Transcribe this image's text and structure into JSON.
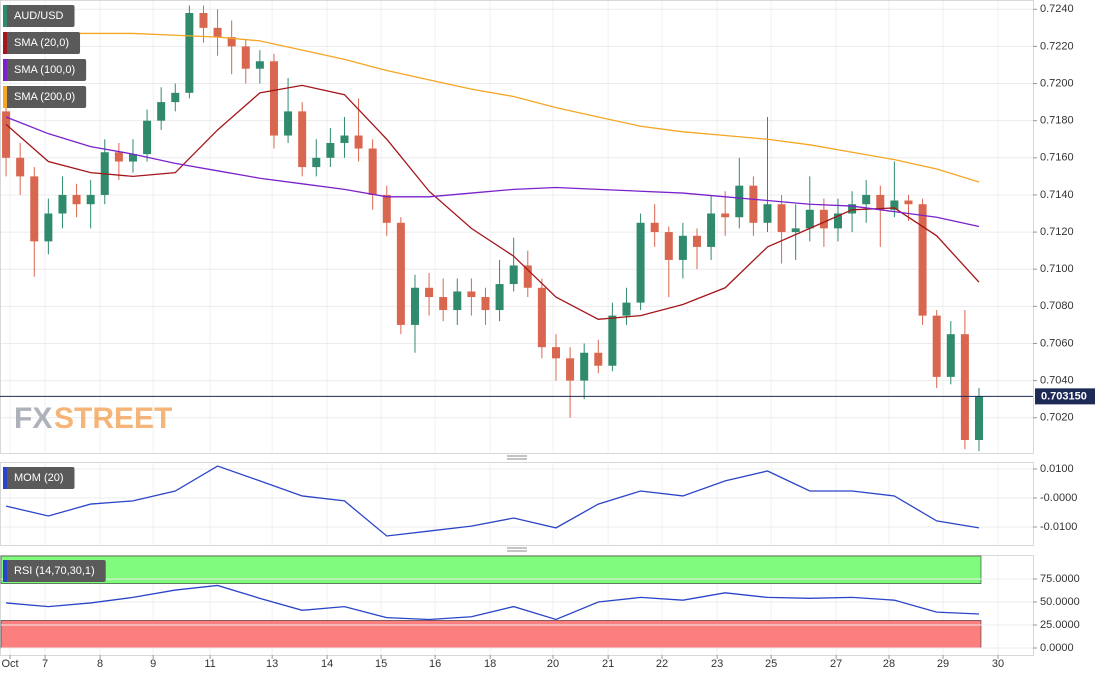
{
  "chart_data": [
    {
      "type": "candlestick",
      "title": "AUD/USD",
      "watermark": [
        "FX",
        "STREET"
      ],
      "colors": {
        "up": "#2f8a6e",
        "down": "#d9664f"
      },
      "open": [
        0.7185,
        0.716,
        0.715,
        0.7115,
        0.713,
        0.714,
        0.7135,
        0.714,
        0.7163,
        0.7158,
        0.7162,
        0.718,
        0.719,
        0.7195,
        0.7238,
        0.723,
        0.7225,
        0.722,
        0.7208,
        0.7212,
        0.7172,
        0.7185,
        0.7155,
        0.716,
        0.7168,
        0.7172,
        0.7165,
        0.714,
        0.7125,
        0.707,
        0.709,
        0.7085,
        0.7078,
        0.7088,
        0.7085,
        0.7078,
        0.7092,
        0.7102,
        0.709,
        0.7058,
        0.7052,
        0.704,
        0.7055,
        0.7048,
        0.7075,
        0.7082,
        0.7125,
        0.712,
        0.7105,
        0.7118,
        0.7112,
        0.713,
        0.7128,
        0.7145,
        0.7125,
        0.7135,
        0.712,
        0.7122,
        0.7132,
        0.7122,
        0.713,
        0.7135,
        0.714,
        0.7132,
        0.7137,
        0.7135,
        0.7075,
        0.7042,
        0.7065,
        0.7008
      ],
      "high": [
        0.719,
        0.7168,
        0.7155,
        0.7138,
        0.715,
        0.7146,
        0.7148,
        0.717,
        0.7168,
        0.717,
        0.7186,
        0.7198,
        0.72,
        0.7242,
        0.7242,
        0.724,
        0.7234,
        0.7224,
        0.7218,
        0.7216,
        0.7203,
        0.719,
        0.717,
        0.7176,
        0.7182,
        0.7192,
        0.717,
        0.7145,
        0.7128,
        0.7097,
        0.7098,
        0.7095,
        0.7095,
        0.7095,
        0.709,
        0.7105,
        0.7117,
        0.711,
        0.7095,
        0.7065,
        0.7058,
        0.706,
        0.7062,
        0.7082,
        0.709,
        0.713,
        0.7135,
        0.7123,
        0.7125,
        0.7122,
        0.714,
        0.7142,
        0.716,
        0.715,
        0.7182,
        0.714,
        0.7135,
        0.715,
        0.7138,
        0.7138,
        0.7142,
        0.7148,
        0.7145,
        0.7158,
        0.714,
        0.7138,
        0.7078,
        0.7072,
        0.7078,
        0.7036
      ],
      "low": [
        0.715,
        0.714,
        0.7096,
        0.7108,
        0.7122,
        0.7128,
        0.7122,
        0.7135,
        0.7148,
        0.7152,
        0.7158,
        0.7175,
        0.7185,
        0.7192,
        0.7222,
        0.7215,
        0.7205,
        0.72,
        0.72,
        0.7165,
        0.7168,
        0.715,
        0.715,
        0.7155,
        0.716,
        0.7158,
        0.7132,
        0.7118,
        0.7065,
        0.7055,
        0.7075,
        0.7072,
        0.707,
        0.7075,
        0.707,
        0.7072,
        0.7088,
        0.7085,
        0.7052,
        0.704,
        0.702,
        0.703,
        0.7044,
        0.7045,
        0.707,
        0.7078,
        0.7112,
        0.7085,
        0.7095,
        0.71,
        0.7105,
        0.7118,
        0.7122,
        0.7118,
        0.712,
        0.7103,
        0.7105,
        0.7115,
        0.7112,
        0.7115,
        0.712,
        0.7125,
        0.7112,
        0.7128,
        0.7126,
        0.707,
        0.7036,
        0.7038,
        0.7003,
        0.7002
      ],
      "close": [
        0.716,
        0.715,
        0.7115,
        0.713,
        0.714,
        0.7135,
        0.714,
        0.7163,
        0.7158,
        0.7162,
        0.718,
        0.719,
        0.7195,
        0.7238,
        0.723,
        0.7225,
        0.722,
        0.7208,
        0.7212,
        0.7172,
        0.7185,
        0.7155,
        0.716,
        0.7168,
        0.7172,
        0.7165,
        0.714,
        0.7125,
        0.707,
        0.709,
        0.7085,
        0.7078,
        0.7088,
        0.7085,
        0.7078,
        0.7092,
        0.7102,
        0.709,
        0.7058,
        0.7052,
        0.704,
        0.7055,
        0.7048,
        0.7075,
        0.7082,
        0.7125,
        0.712,
        0.7105,
        0.7118,
        0.7112,
        0.713,
        0.7128,
        0.7145,
        0.7125,
        0.7135,
        0.712,
        0.7122,
        0.7132,
        0.7122,
        0.713,
        0.7135,
        0.714,
        0.7132,
        0.7137,
        0.7135,
        0.7075,
        0.7042,
        0.7065,
        0.7008,
        0.70315
      ],
      "series": [
        {
          "name": "SMA (20,0)",
          "color": "#a3161a",
          "x": [
            0,
            3,
            6,
            9,
            12,
            15,
            18,
            21,
            24,
            27,
            30,
            33,
            36,
            39,
            42,
            45,
            48,
            51,
            54,
            57,
            60,
            63,
            66,
            69
          ],
          "values": [
            0.7178,
            0.7158,
            0.7152,
            0.715,
            0.7152,
            0.7175,
            0.7195,
            0.7199,
            0.7194,
            0.717,
            0.7142,
            0.7122,
            0.7107,
            0.7085,
            0.7073,
            0.7075,
            0.7081,
            0.709,
            0.7112,
            0.7122,
            0.7132,
            0.7133,
            0.7118,
            0.7093
          ]
        },
        {
          "name": "SMA (100,0)",
          "color": "#7a22cc",
          "x": [
            0,
            3,
            6,
            9,
            12,
            15,
            18,
            21,
            24,
            27,
            30,
            33,
            36,
            39,
            42,
            45,
            48,
            51,
            54,
            57,
            60,
            63,
            66,
            69
          ],
          "values": [
            0.7182,
            0.7173,
            0.7166,
            0.7162,
            0.7157,
            0.7153,
            0.7149,
            0.7146,
            0.7143,
            0.7139,
            0.7139,
            0.7141,
            0.7143,
            0.7144,
            0.7143,
            0.7142,
            0.7141,
            0.7139,
            0.7137,
            0.7135,
            0.7134,
            0.7131,
            0.7128,
            0.7123
          ]
        },
        {
          "name": "SMA (200,0)",
          "color": "#f5a623",
          "x": [
            0,
            3,
            6,
            9,
            12,
            15,
            18,
            21,
            24,
            27,
            30,
            33,
            36,
            39,
            42,
            45,
            48,
            51,
            54,
            57,
            60,
            63,
            66,
            69
          ],
          "values": [
            0.7227,
            0.7227,
            0.7227,
            0.7227,
            0.7226,
            0.7225,
            0.7223,
            0.7218,
            0.7213,
            0.7207,
            0.7202,
            0.7197,
            0.7193,
            0.7187,
            0.7182,
            0.7177,
            0.7174,
            0.7172,
            0.717,
            0.7167,
            0.7163,
            0.7159,
            0.7154,
            0.7147
          ]
        }
      ],
      "last_price": {
        "value": 0.70315,
        "label": "0.703150"
      },
      "xlim": [
        -0.43,
        72.83
      ],
      "ylim": [
        0.7001,
        0.7245
      ],
      "yticks": [
        {
          "value": 0.724,
          "label": "0.7240"
        },
        {
          "value": 0.722,
          "label": "0.7220"
        },
        {
          "value": 0.72,
          "label": "0.7200"
        },
        {
          "value": 0.718,
          "label": "0.7180"
        },
        {
          "value": 0.716,
          "label": "0.7160"
        },
        {
          "value": 0.714,
          "label": "0.7140"
        },
        {
          "value": 0.712,
          "label": "0.7120"
        },
        {
          "value": 0.71,
          "label": "0.7100"
        },
        {
          "value": 0.708,
          "label": "0.7080"
        },
        {
          "value": 0.706,
          "label": "0.7060"
        },
        {
          "value": 0.704,
          "label": "0.7040"
        },
        {
          "value": 0.702,
          "label": "0.7020"
        }
      ]
    },
    {
      "type": "line",
      "series": [
        {
          "name": "MOM (20)",
          "color": "#2a45c8",
          "x": [
            0,
            3,
            6,
            9,
            12,
            15,
            18,
            21,
            24,
            27,
            30,
            33,
            36,
            39,
            42,
            45,
            48,
            51,
            54,
            57,
            60,
            63,
            66,
            69
          ],
          "values": [
            -0.0028,
            -0.0062,
            -0.0021,
            -0.001,
            0.0024,
            0.011,
            0.0059,
            0.0007,
            -0.001,
            -0.0131,
            -0.0114,
            -0.0097,
            -0.0069,
            -0.0103,
            -0.0021,
            0.0024,
            0.0007,
            0.0059,
            0.0093,
            0.0024,
            0.0024,
            0.0007,
            -0.0079,
            -0.0103
          ]
        }
      ],
      "xlim": [
        -0.43,
        72.83
      ],
      "ylim": [
        -0.0162,
        0.0124
      ],
      "yticks": [
        {
          "value": 0.01,
          "label": "0.0100"
        },
        {
          "value": 0,
          "label": "-0.0000"
        },
        {
          "value": -0.01,
          "label": "-0.0100"
        }
      ]
    },
    {
      "type": "line",
      "series": [
        {
          "name": "RSI (14,70,30,1)",
          "color": "#2a45c8",
          "x": [
            0,
            3,
            6,
            9,
            12,
            15,
            18,
            21,
            24,
            27,
            30,
            33,
            36,
            39,
            42,
            45,
            48,
            51,
            54,
            57,
            60,
            63,
            66,
            69
          ],
          "values": [
            49,
            45,
            49,
            55,
            63,
            68,
            54,
            41,
            45,
            33,
            31,
            34,
            45,
            31,
            50,
            55,
            52,
            60,
            55,
            54,
            55,
            52,
            39,
            37
          ]
        }
      ],
      "bands": [
        {
          "from": 70,
          "to": 100,
          "color": "#80fb7e"
        },
        {
          "from": 0,
          "to": 30,
          "color": "#fb7f7f"
        }
      ],
      "xlim": [
        -0.43,
        72.83
      ],
      "ylim": [
        -7.6,
        101.1
      ],
      "yticks": [
        {
          "value": 75,
          "label": "75.0000"
        },
        {
          "value": 50,
          "label": "50.0000"
        },
        {
          "value": 25,
          "label": "25.0000"
        },
        {
          "value": 0,
          "label": "0.0000"
        }
      ],
      "xticks": [
        {
          "value": 0.28,
          "label": "Oct"
        },
        {
          "value": 2.77,
          "label": "7"
        },
        {
          "value": 6.67,
          "label": "8"
        },
        {
          "value": 10.43,
          "label": "9"
        },
        {
          "value": 14.47,
          "label": "11"
        },
        {
          "value": 18.87,
          "label": "13"
        },
        {
          "value": 22.77,
          "label": "14"
        },
        {
          "value": 26.6,
          "label": "15"
        },
        {
          "value": 30.43,
          "label": "16"
        },
        {
          "value": 34.33,
          "label": "18"
        },
        {
          "value": 38.79,
          "label": "20"
        },
        {
          "value": 42.7,
          "label": "21"
        },
        {
          "value": 46.52,
          "label": "22"
        },
        {
          "value": 50.43,
          "label": "23"
        },
        {
          "value": 54.26,
          "label": "25"
        },
        {
          "value": 58.87,
          "label": "27"
        },
        {
          "value": 62.62,
          "label": "28"
        },
        {
          "value": 66.45,
          "label": "29"
        },
        {
          "value": 70.35,
          "label": "30"
        }
      ]
    }
  ]
}
